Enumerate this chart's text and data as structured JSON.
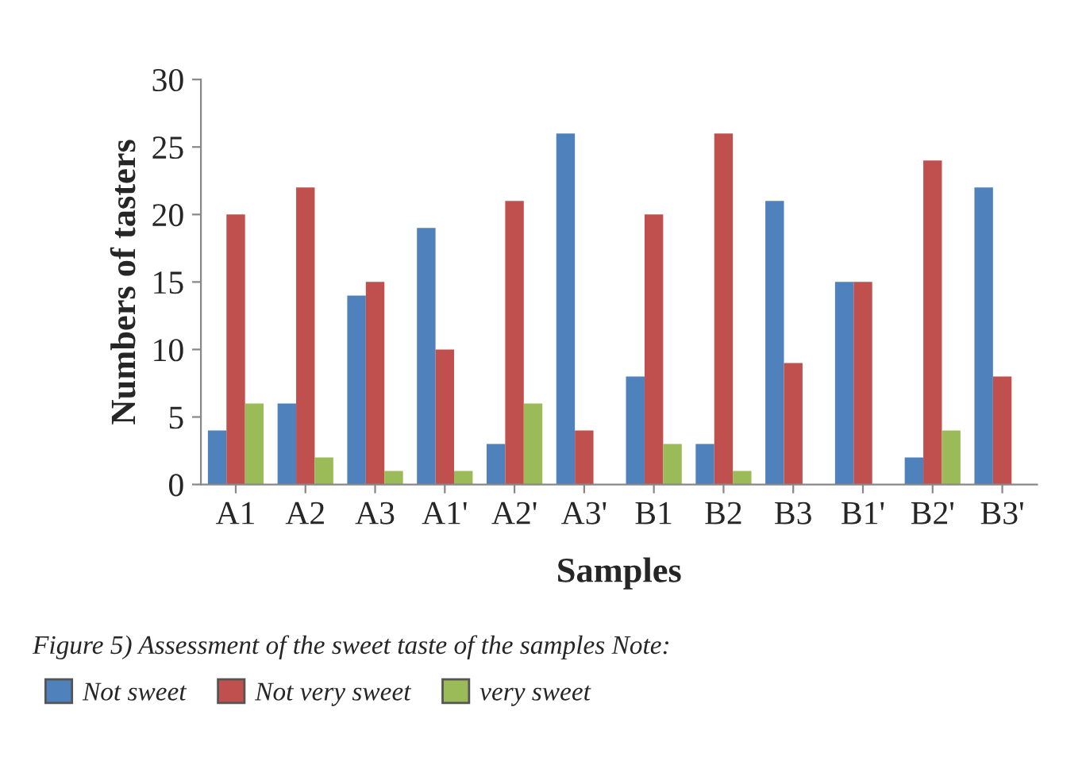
{
  "chart_data": {
    "type": "bar",
    "xlabel": "Samples",
    "ylabel": "Numbers of tasters",
    "categories": [
      "A1",
      "A2",
      "A3",
      "A1'",
      "A2'",
      "A3'",
      "B1",
      "B2",
      "B3",
      "B1'",
      "B2'",
      "B3'"
    ],
    "series": [
      {
        "name": "Not sweet",
        "color": "#4f81bd",
        "values": [
          4,
          6,
          14,
          19,
          3,
          26,
          8,
          3,
          21,
          15,
          2,
          22
        ]
      },
      {
        "name": "Not very sweet",
        "color": "#c0504d",
        "values": [
          20,
          22,
          15,
          10,
          21,
          4,
          20,
          26,
          9,
          15,
          24,
          8
        ]
      },
      {
        "name": "very sweet",
        "color": "#9bbb59",
        "values": [
          6,
          2,
          1,
          1,
          6,
          null,
          3,
          1,
          null,
          null,
          4,
          null
        ]
      }
    ],
    "ylim": [
      0,
      30
    ],
    "yticks": [
      0,
      5,
      10,
      15,
      20,
      25,
      30
    ],
    "grid": false,
    "legend": "bottom",
    "annotations": [
      "Figure 5) Assessment of the sweet taste of the samples Note:"
    ]
  }
}
